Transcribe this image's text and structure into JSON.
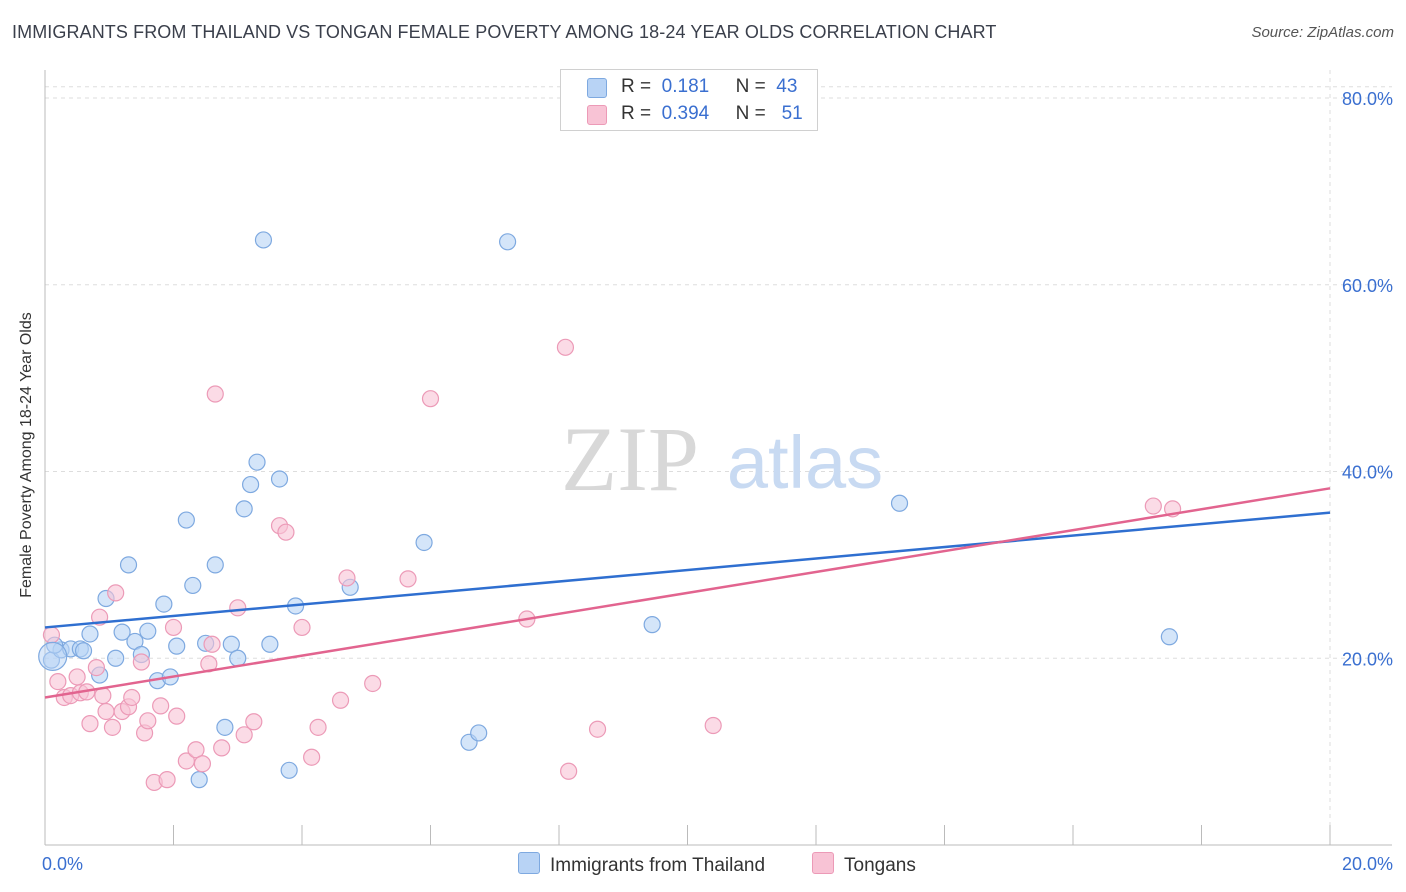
{
  "title": "IMMIGRANTS FROM THAILAND VS TONGAN FEMALE POVERTY AMONG 18-24 YEAR OLDS CORRELATION CHART",
  "source": "Source: ZipAtlas.com",
  "watermark": {
    "zip": "ZIP",
    "atlas": "atlas"
  },
  "legend_top": {
    "rows": [
      {
        "r_label": "R =",
        "r_value": "0.181",
        "n_label": "N =",
        "n_value": "43"
      },
      {
        "r_label": "R =",
        "r_value": "0.394",
        "n_label": "N =",
        "n_value": "51"
      }
    ]
  },
  "colors": {
    "blue_fill": "#b8d3f5",
    "blue_stroke": "#7ea9e0",
    "blue_line": "#2f6fd0",
    "pink_fill": "#f8c3d5",
    "pink_stroke": "#ec9ab7",
    "pink_line": "#e2648f",
    "axis_text": "#3a6fd0",
    "grid": "#dddddd"
  },
  "chart_data": {
    "type": "scatter",
    "xlabel": "",
    "ylabel": "Female Poverty Among 18-24 Year Olds",
    "xlim": [
      0,
      20
    ],
    "ylim": [
      0,
      83
    ],
    "x_tick_labels": [
      {
        "value": 0,
        "label": "0.0%"
      },
      {
        "value": 20,
        "label": "20.0%"
      }
    ],
    "y_tick_labels": [
      {
        "value": 20,
        "label": "20.0%"
      },
      {
        "value": 40,
        "label": "40.0%"
      },
      {
        "value": 60,
        "label": "60.0%"
      },
      {
        "value": 80,
        "label": "80.0%"
      }
    ],
    "grid": true,
    "legend_position": "bottom",
    "series": [
      {
        "name": "Immigrants from Thailand",
        "color": "blue",
        "trendline": {
          "x": [
            0,
            20
          ],
          "y": [
            23.3,
            35.6
          ]
        },
        "points": [
          {
            "x": 0.1,
            "y": 19.8
          },
          {
            "x": 0.25,
            "y": 20.9
          },
          {
            "x": 0.4,
            "y": 21.0
          },
          {
            "x": 0.55,
            "y": 21.0
          },
          {
            "x": 0.7,
            "y": 22.6
          },
          {
            "x": 0.85,
            "y": 18.2
          },
          {
            "x": 0.95,
            "y": 26.4
          },
          {
            "x": 1.1,
            "y": 20.0
          },
          {
            "x": 1.2,
            "y": 22.8
          },
          {
            "x": 1.3,
            "y": 30.0
          },
          {
            "x": 1.4,
            "y": 21.8
          },
          {
            "x": 1.5,
            "y": 20.4
          },
          {
            "x": 1.6,
            "y": 22.9
          },
          {
            "x": 1.75,
            "y": 17.6
          },
          {
            "x": 1.85,
            "y": 25.8
          },
          {
            "x": 1.95,
            "y": 18.0
          },
          {
            "x": 2.05,
            "y": 21.3
          },
          {
            "x": 2.2,
            "y": 34.8
          },
          {
            "x": 2.3,
            "y": 27.8
          },
          {
            "x": 2.4,
            "y": 7.0
          },
          {
            "x": 2.5,
            "y": 21.6
          },
          {
            "x": 2.65,
            "y": 30.0
          },
          {
            "x": 2.8,
            "y": 12.6
          },
          {
            "x": 2.9,
            "y": 21.5
          },
          {
            "x": 3.0,
            "y": 20.0
          },
          {
            "x": 3.1,
            "y": 36.0
          },
          {
            "x": 3.2,
            "y": 38.6
          },
          {
            "x": 3.3,
            "y": 41.0
          },
          {
            "x": 3.4,
            "y": 64.8
          },
          {
            "x": 3.5,
            "y": 21.5
          },
          {
            "x": 3.65,
            "y": 39.2
          },
          {
            "x": 3.8,
            "y": 8.0
          },
          {
            "x": 3.9,
            "y": 25.6
          },
          {
            "x": 4.75,
            "y": 27.6
          },
          {
            "x": 5.9,
            "y": 32.4
          },
          {
            "x": 6.6,
            "y": 11.0
          },
          {
            "x": 6.75,
            "y": 12.0
          },
          {
            "x": 7.2,
            "y": 64.6
          },
          {
            "x": 9.45,
            "y": 23.6
          },
          {
            "x": 13.3,
            "y": 36.6
          },
          {
            "x": 17.5,
            "y": 22.3
          },
          {
            "x": 0.15,
            "y": 21.4
          },
          {
            "x": 0.6,
            "y": 20.8
          }
        ]
      },
      {
        "name": "Tongans",
        "color": "pink",
        "trendline": {
          "x": [
            0,
            20
          ],
          "y": [
            15.8,
            38.2
          ]
        },
        "points": [
          {
            "x": 0.1,
            "y": 22.5
          },
          {
            "x": 0.2,
            "y": 17.5
          },
          {
            "x": 0.3,
            "y": 15.8
          },
          {
            "x": 0.4,
            "y": 16.0
          },
          {
            "x": 0.5,
            "y": 18.0
          },
          {
            "x": 0.55,
            "y": 16.3
          },
          {
            "x": 0.65,
            "y": 16.4
          },
          {
            "x": 0.7,
            "y": 13.0
          },
          {
            "x": 0.8,
            "y": 19.0
          },
          {
            "x": 0.85,
            "y": 24.4
          },
          {
            "x": 0.9,
            "y": 16.0
          },
          {
            "x": 0.95,
            "y": 14.3
          },
          {
            "x": 1.05,
            "y": 12.6
          },
          {
            "x": 1.1,
            "y": 27.0
          },
          {
            "x": 1.2,
            "y": 14.3
          },
          {
            "x": 1.3,
            "y": 14.8
          },
          {
            "x": 1.35,
            "y": 15.8
          },
          {
            "x": 1.5,
            "y": 19.6
          },
          {
            "x": 1.55,
            "y": 12.0
          },
          {
            "x": 1.6,
            "y": 13.3
          },
          {
            "x": 1.7,
            "y": 6.7
          },
          {
            "x": 1.8,
            "y": 14.9
          },
          {
            "x": 1.9,
            "y": 7.0
          },
          {
            "x": 2.0,
            "y": 23.3
          },
          {
            "x": 2.05,
            "y": 13.8
          },
          {
            "x": 2.2,
            "y": 9.0
          },
          {
            "x": 2.35,
            "y": 10.2
          },
          {
            "x": 2.45,
            "y": 8.7
          },
          {
            "x": 2.55,
            "y": 19.4
          },
          {
            "x": 2.6,
            "y": 21.5
          },
          {
            "x": 2.65,
            "y": 48.3
          },
          {
            "x": 2.75,
            "y": 10.4
          },
          {
            "x": 3.0,
            "y": 25.4
          },
          {
            "x": 3.1,
            "y": 11.8
          },
          {
            "x": 3.25,
            "y": 13.2
          },
          {
            "x": 3.65,
            "y": 34.2
          },
          {
            "x": 3.75,
            "y": 33.5
          },
          {
            "x": 4.0,
            "y": 23.3
          },
          {
            "x": 4.15,
            "y": 9.4
          },
          {
            "x": 4.25,
            "y": 12.6
          },
          {
            "x": 4.6,
            "y": 15.5
          },
          {
            "x": 4.7,
            "y": 28.6
          },
          {
            "x": 5.1,
            "y": 17.3
          },
          {
            "x": 5.65,
            "y": 28.5
          },
          {
            "x": 6.0,
            "y": 47.8
          },
          {
            "x": 7.5,
            "y": 24.2
          },
          {
            "x": 8.1,
            "y": 53.3
          },
          {
            "x": 8.15,
            "y": 7.9
          },
          {
            "x": 8.6,
            "y": 12.4
          },
          {
            "x": 10.4,
            "y": 12.8
          },
          {
            "x": 17.25,
            "y": 36.3
          }
        ]
      }
    ]
  },
  "extra_points_pink": [
    {
      "x": 17.55,
      "y": 36.0
    }
  ],
  "legend_bottom": {
    "items": [
      {
        "label": "Immigrants from Thailand"
      },
      {
        "label": "Tongans"
      }
    ]
  }
}
